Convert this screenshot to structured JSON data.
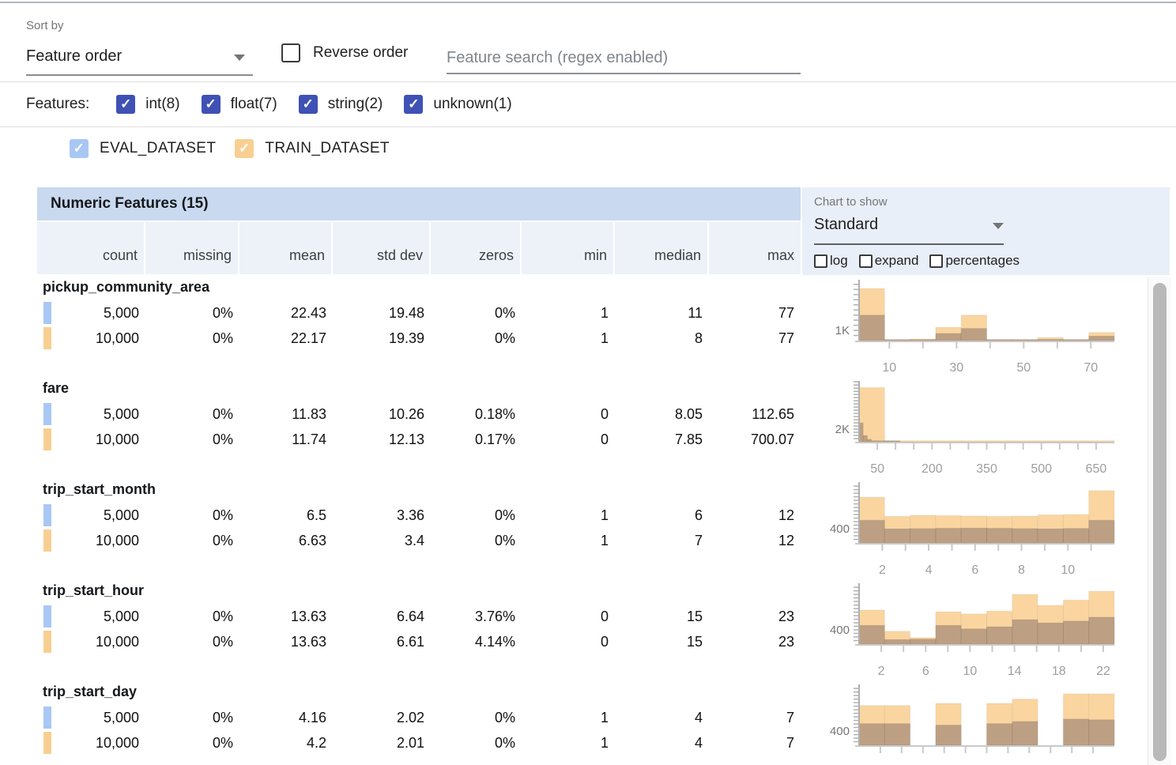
{
  "toolbar": {
    "sort_by_label": "Sort by",
    "sort_by_value": "Feature order",
    "reverse_order_label": "Reverse order",
    "reverse_order_checked": false,
    "search_placeholder": "Feature search (regex enabled)"
  },
  "feature_filters": {
    "label": "Features:",
    "checkbox_color": "#3f51b5",
    "items": [
      {
        "label": "int(8)",
        "checked": true
      },
      {
        "label": "float(7)",
        "checked": true
      },
      {
        "label": "string(2)",
        "checked": true
      },
      {
        "label": "unknown(1)",
        "checked": true
      }
    ]
  },
  "dataset_legend": [
    {
      "name": "EVAL_DATASET",
      "color": "#a9c7f4",
      "checked": true
    },
    {
      "name": "TRAIN_DATASET",
      "color": "#f8cf92",
      "checked": true
    }
  ],
  "table": {
    "title": "Numeric Features (15)",
    "columns": [
      "count",
      "missing",
      "mean",
      "std dev",
      "zeros",
      "min",
      "median",
      "max"
    ],
    "features": [
      {
        "name": "pickup_community_area",
        "rows": [
          {
            "dataset": "EVAL_DATASET",
            "values": [
              "5,000",
              "0%",
              "22.43",
              "19.48",
              "0%",
              "1",
              "11",
              "77"
            ]
          },
          {
            "dataset": "TRAIN_DATASET",
            "values": [
              "10,000",
              "0%",
              "22.17",
              "19.39",
              "0%",
              "1",
              "8",
              "77"
            ]
          }
        ]
      },
      {
        "name": "fare",
        "rows": [
          {
            "dataset": "EVAL_DATASET",
            "values": [
              "5,000",
              "0%",
              "11.83",
              "10.26",
              "0.18%",
              "0",
              "8.05",
              "112.65"
            ]
          },
          {
            "dataset": "TRAIN_DATASET",
            "values": [
              "10,000",
              "0%",
              "11.74",
              "12.13",
              "0.17%",
              "0",
              "7.85",
              "700.07"
            ]
          }
        ]
      },
      {
        "name": "trip_start_month",
        "rows": [
          {
            "dataset": "EVAL_DATASET",
            "values": [
              "5,000",
              "0%",
              "6.5",
              "3.36",
              "0%",
              "1",
              "6",
              "12"
            ]
          },
          {
            "dataset": "TRAIN_DATASET",
            "values": [
              "10,000",
              "0%",
              "6.63",
              "3.4",
              "0%",
              "1",
              "7",
              "12"
            ]
          }
        ]
      },
      {
        "name": "trip_start_hour",
        "rows": [
          {
            "dataset": "EVAL_DATASET",
            "values": [
              "5,000",
              "0%",
              "13.63",
              "6.64",
              "3.76%",
              "0",
              "15",
              "23"
            ]
          },
          {
            "dataset": "TRAIN_DATASET",
            "values": [
              "10,000",
              "0%",
              "13.63",
              "6.61",
              "4.14%",
              "0",
              "15",
              "23"
            ]
          }
        ]
      },
      {
        "name": "trip_start_day",
        "rows": [
          {
            "dataset": "EVAL_DATASET",
            "values": [
              "5,000",
              "0%",
              "4.16",
              "2.02",
              "0%",
              "1",
              "4",
              "7"
            ]
          },
          {
            "dataset": "TRAIN_DATASET",
            "values": [
              "10,000",
              "0%",
              "4.2",
              "2.01",
              "0%",
              "1",
              "4",
              "7"
            ]
          }
        ]
      }
    ]
  },
  "chart_controls": {
    "label": "Chart to show",
    "selected": "Standard",
    "checkboxes": [
      {
        "label": "log",
        "checked": false
      },
      {
        "label": "expand",
        "checked": false
      },
      {
        "label": "percentages",
        "checked": false
      }
    ]
  },
  "histogram_colors": {
    "train_bar": "#fad5a0",
    "eval_overlay": "rgba(115,95,95,0.45)"
  },
  "chart_data": [
    {
      "type": "bar",
      "feature": "pickup_community_area",
      "x_range": [
        1,
        77
      ],
      "y_max": 5800,
      "y_tick_step": 500,
      "y_label": {
        "text": "1K",
        "value": 1000
      },
      "x_tick_step": 10,
      "x_tick_labels": [
        10,
        30,
        50,
        70
      ],
      "series": [
        {
          "name": "TRAIN_DATASET",
          "color": "#fad5a0",
          "bin_start": 1,
          "bin_width": 7.6,
          "counts": [
            5100,
            60,
            160,
            1300,
            2500,
            40,
            40,
            300,
            40,
            800
          ]
        },
        {
          "name": "EVAL_DATASET",
          "color": "rgba(115,95,95,0.45)",
          "bin_start": 1,
          "bin_width": 7.6,
          "counts": [
            2500,
            30,
            70,
            700,
            1200,
            20,
            20,
            120,
            20,
            450
          ]
        }
      ]
    },
    {
      "type": "bar",
      "feature": "fare",
      "x_range": [
        0,
        700
      ],
      "y_max": 9400,
      "y_tick_step": 500,
      "y_label": {
        "text": "2K",
        "value": 2000
      },
      "x_tick_step": 50,
      "x_tick_labels": [
        50,
        200,
        350,
        500,
        650
      ],
      "series": [
        {
          "name": "TRAIN_DATASET",
          "color": "#fad5a0",
          "bin_start": 0,
          "bin_width": 70,
          "counts": [
            8600,
            150,
            30,
            20,
            15,
            10,
            10,
            10,
            10,
            20
          ]
        },
        {
          "name": "EVAL_DATASET",
          "color": "rgba(115,95,95,0.45)",
          "bin_start": 0,
          "bin_width": 11.27,
          "counts": [
            3000,
            1000,
            400,
            180,
            90,
            50,
            30,
            20,
            15,
            10
          ]
        }
      ]
    },
    {
      "type": "bar",
      "feature": "trip_start_month",
      "x_range": [
        1,
        12
      ],
      "y_max": 1670,
      "y_tick_step": 100,
      "y_label": {
        "text": "400",
        "value": 400
      },
      "x_tick_step": 1,
      "x_tick_labels": [
        2,
        4,
        6,
        8,
        10
      ],
      "series": [
        {
          "name": "TRAIN_DATASET",
          "color": "#fad5a0",
          "bin_start": 1,
          "bin_width": 1.1,
          "counts": [
            1290,
            750,
            780,
            770,
            760,
            750,
            755,
            790,
            800,
            1475
          ]
        },
        {
          "name": "EVAL_DATASET",
          "color": "rgba(115,95,95,0.45)",
          "bin_start": 1,
          "bin_width": 1.1,
          "counts": [
            640,
            400,
            405,
            415,
            420,
            415,
            405,
            400,
            410,
            640
          ]
        }
      ]
    },
    {
      "type": "bar",
      "feature": "trip_start_hour",
      "x_range": [
        0,
        23
      ],
      "y_max": 1670,
      "y_tick_step": 100,
      "y_label": {
        "text": "400",
        "value": 400
      },
      "x_tick_step": 2,
      "x_tick_labels": [
        2,
        6,
        10,
        14,
        18,
        22
      ],
      "series": [
        {
          "name": "TRAIN_DATASET",
          "color": "#fad5a0",
          "bin_start": 0,
          "bin_width": 2.3,
          "counts": [
            960,
            360,
            180,
            910,
            850,
            930,
            1400,
            1090,
            1240,
            1490
          ]
        },
        {
          "name": "EVAL_DATASET",
          "color": "rgba(115,95,95,0.45)",
          "bin_start": 0,
          "bin_width": 2.3,
          "counts": [
            530,
            130,
            140,
            530,
            430,
            490,
            690,
            600,
            650,
            760
          ]
        }
      ]
    },
    {
      "type": "bar",
      "feature": "trip_start_day",
      "x_range": [
        1,
        7
      ],
      "y_max": 1670,
      "y_tick_step": 100,
      "y_label": {
        "text": "400",
        "value": 400
      },
      "x_tick_step": 0.5,
      "x_tick_labels": [],
      "series": [
        {
          "name": "TRAIN_DATASET",
          "color": "#fad5a0",
          "bin_start": 1,
          "bin_width": 0.6,
          "counts": [
            1120,
            1120,
            0,
            1180,
            0,
            1180,
            1300,
            0,
            1450,
            1450
          ]
        },
        {
          "name": "EVAL_DATASET",
          "color": "rgba(115,95,95,0.45)",
          "bin_start": 1,
          "bin_width": 0.6,
          "counts": [
            610,
            610,
            0,
            570,
            0,
            610,
            670,
            0,
            740,
            720
          ]
        }
      ]
    }
  ]
}
